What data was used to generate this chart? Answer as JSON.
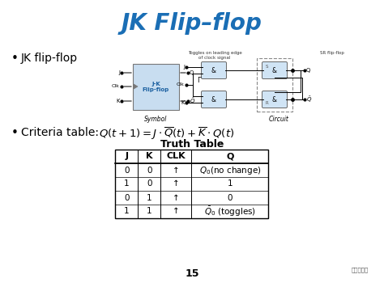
{
  "title": "JK Flip–flop",
  "title_color": "#1a6eb5",
  "title_fontsize": 20,
  "bg_color": "#ffffff",
  "bullet1_text": "JK flip-flop",
  "bullet2_text": "Criteria table: ",
  "page_number": "15",
  "table_title": "Truth Table",
  "table_headers": [
    "J",
    "K",
    "CLK",
    "Q"
  ],
  "ann_text": "Toggles on leading edge\nof clock signal",
  "sr_label": "SR flip-flop",
  "symbol_label": "Symbol",
  "circuit_label": "Circuit"
}
